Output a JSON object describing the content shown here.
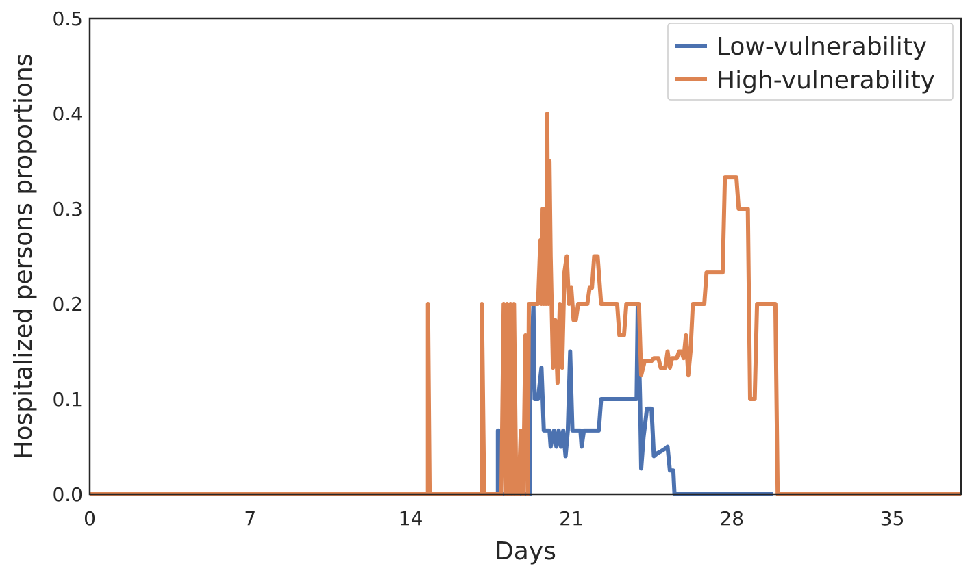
{
  "chart_data": {
    "type": "line",
    "title": "",
    "xlabel": "Days",
    "ylabel": "Hospitalized persons proportions",
    "xlim": [
      0,
      38
    ],
    "ylim": [
      0,
      0.5
    ],
    "x_ticks": [
      0,
      7,
      14,
      21,
      28,
      35
    ],
    "y_ticks": [
      0.0,
      0.1,
      0.2,
      0.3,
      0.4,
      0.5
    ],
    "x_tick_labels": [
      "0",
      "7",
      "14",
      "21",
      "28",
      "35"
    ],
    "y_tick_labels": [
      "0.0",
      "0.1",
      "0.2",
      "0.3",
      "0.4",
      "0.5"
    ],
    "grid": false,
    "legend_position": "top-right",
    "series": [
      {
        "name": "Low-vulnerability",
        "color": "#4c72b0",
        "points": [
          [
            0,
            0
          ],
          [
            17.8,
            0
          ],
          [
            17.8,
            0.067
          ],
          [
            17.85,
            0.067
          ],
          [
            17.85,
            0
          ],
          [
            19.2,
            0
          ],
          [
            19.2,
            0.1
          ],
          [
            19.35,
            0.2
          ],
          [
            19.4,
            0.1
          ],
          [
            19.55,
            0.1
          ],
          [
            19.7,
            0.133
          ],
          [
            19.8,
            0.067
          ],
          [
            20.05,
            0.067
          ],
          [
            20.1,
            0.05
          ],
          [
            20.25,
            0.067
          ],
          [
            20.35,
            0.05
          ],
          [
            20.45,
            0.067
          ],
          [
            20.55,
            0.05
          ],
          [
            20.65,
            0.067
          ],
          [
            20.75,
            0.04
          ],
          [
            20.85,
            0.067
          ],
          [
            20.95,
            0.15
          ],
          [
            21.05,
            0.067
          ],
          [
            21.4,
            0.067
          ],
          [
            21.45,
            0.05
          ],
          [
            21.55,
            0.067
          ],
          [
            22.2,
            0.067
          ],
          [
            22.3,
            0.1
          ],
          [
            23.85,
            0.1
          ],
          [
            23.9,
            0.2
          ],
          [
            24,
            0.1
          ],
          [
            24.05,
            0.027
          ],
          [
            24.15,
            0.06
          ],
          [
            24.3,
            0.09
          ],
          [
            24.5,
            0.09
          ],
          [
            24.6,
            0.04
          ],
          [
            24.75,
            0.043
          ],
          [
            24.9,
            0.045
          ],
          [
            25.1,
            0.048
          ],
          [
            25.2,
            0.05
          ],
          [
            25.3,
            0.025
          ],
          [
            25.45,
            0.025
          ],
          [
            25.5,
            0
          ],
          [
            29.8,
            0
          ]
        ]
      },
      {
        "name": "High-vulnerability",
        "color": "#dd8452",
        "points": [
          [
            0,
            0
          ],
          [
            14.75,
            0
          ],
          [
            14.75,
            0.2
          ],
          [
            14.82,
            0
          ],
          [
            17.1,
            0
          ],
          [
            17.1,
            0.2
          ],
          [
            17.2,
            0
          ],
          [
            17.95,
            0
          ],
          [
            18.05,
            0.2
          ],
          [
            18.15,
            0
          ],
          [
            18.2,
            0.2
          ],
          [
            18.3,
            0
          ],
          [
            18.35,
            0.2
          ],
          [
            18.45,
            0
          ],
          [
            18.5,
            0.2
          ],
          [
            18.6,
            0
          ],
          [
            18.7,
            0
          ],
          [
            18.8,
            0.067
          ],
          [
            18.9,
            0
          ],
          [
            19,
            0.167
          ],
          [
            19.1,
            0
          ],
          [
            19.15,
            0.2
          ],
          [
            19.55,
            0.2
          ],
          [
            19.65,
            0.267
          ],
          [
            19.7,
            0.2
          ],
          [
            19.75,
            0.3
          ],
          [
            19.8,
            0.2
          ],
          [
            19.85,
            0.3
          ],
          [
            19.9,
            0.2
          ],
          [
            19.95,
            0.4
          ],
          [
            20.0,
            0.2
          ],
          [
            20.05,
            0.35
          ],
          [
            20.1,
            0.25
          ],
          [
            20.2,
            0.133
          ],
          [
            20.3,
            0.183
          ],
          [
            20.4,
            0.117
          ],
          [
            20.5,
            0.2
          ],
          [
            20.6,
            0.133
          ],
          [
            20.7,
            0.233
          ],
          [
            20.8,
            0.25
          ],
          [
            20.9,
            0.2
          ],
          [
            21.0,
            0.217
          ],
          [
            21.1,
            0.183
          ],
          [
            21.2,
            0.183
          ],
          [
            21.3,
            0.2
          ],
          [
            21.4,
            0.2
          ],
          [
            21.5,
            0.2
          ],
          [
            21.7,
            0.2
          ],
          [
            21.8,
            0.217
          ],
          [
            21.9,
            0.217
          ],
          [
            22.0,
            0.25
          ],
          [
            22.15,
            0.25
          ],
          [
            22.3,
            0.2
          ],
          [
            23.0,
            0.2
          ],
          [
            23.1,
            0.167
          ],
          [
            23.3,
            0.167
          ],
          [
            23.4,
            0.2
          ],
          [
            23.95,
            0.2
          ],
          [
            24.05,
            0.125
          ],
          [
            24.2,
            0.14
          ],
          [
            24.5,
            0.14
          ],
          [
            24.6,
            0.143
          ],
          [
            24.8,
            0.143
          ],
          [
            24.9,
            0.133
          ],
          [
            25.1,
            0.133
          ],
          [
            25.2,
            0.15
          ],
          [
            25.3,
            0.133
          ],
          [
            25.4,
            0.143
          ],
          [
            25.6,
            0.143
          ],
          [
            25.7,
            0.15
          ],
          [
            25.8,
            0.15
          ],
          [
            25.9,
            0.143
          ],
          [
            26.0,
            0.167
          ],
          [
            26.1,
            0.125
          ],
          [
            26.2,
            0.15
          ],
          [
            26.3,
            0.2
          ],
          [
            26.8,
            0.2
          ],
          [
            26.9,
            0.233
          ],
          [
            27.6,
            0.233
          ],
          [
            27.7,
            0.333
          ],
          [
            28.2,
            0.333
          ],
          [
            28.3,
            0.3
          ],
          [
            28.7,
            0.3
          ],
          [
            28.8,
            0.1
          ],
          [
            29.0,
            0.1
          ],
          [
            29.1,
            0.2
          ],
          [
            29.9,
            0.2
          ],
          [
            30.0,
            0
          ],
          [
            38,
            0
          ]
        ]
      }
    ]
  }
}
